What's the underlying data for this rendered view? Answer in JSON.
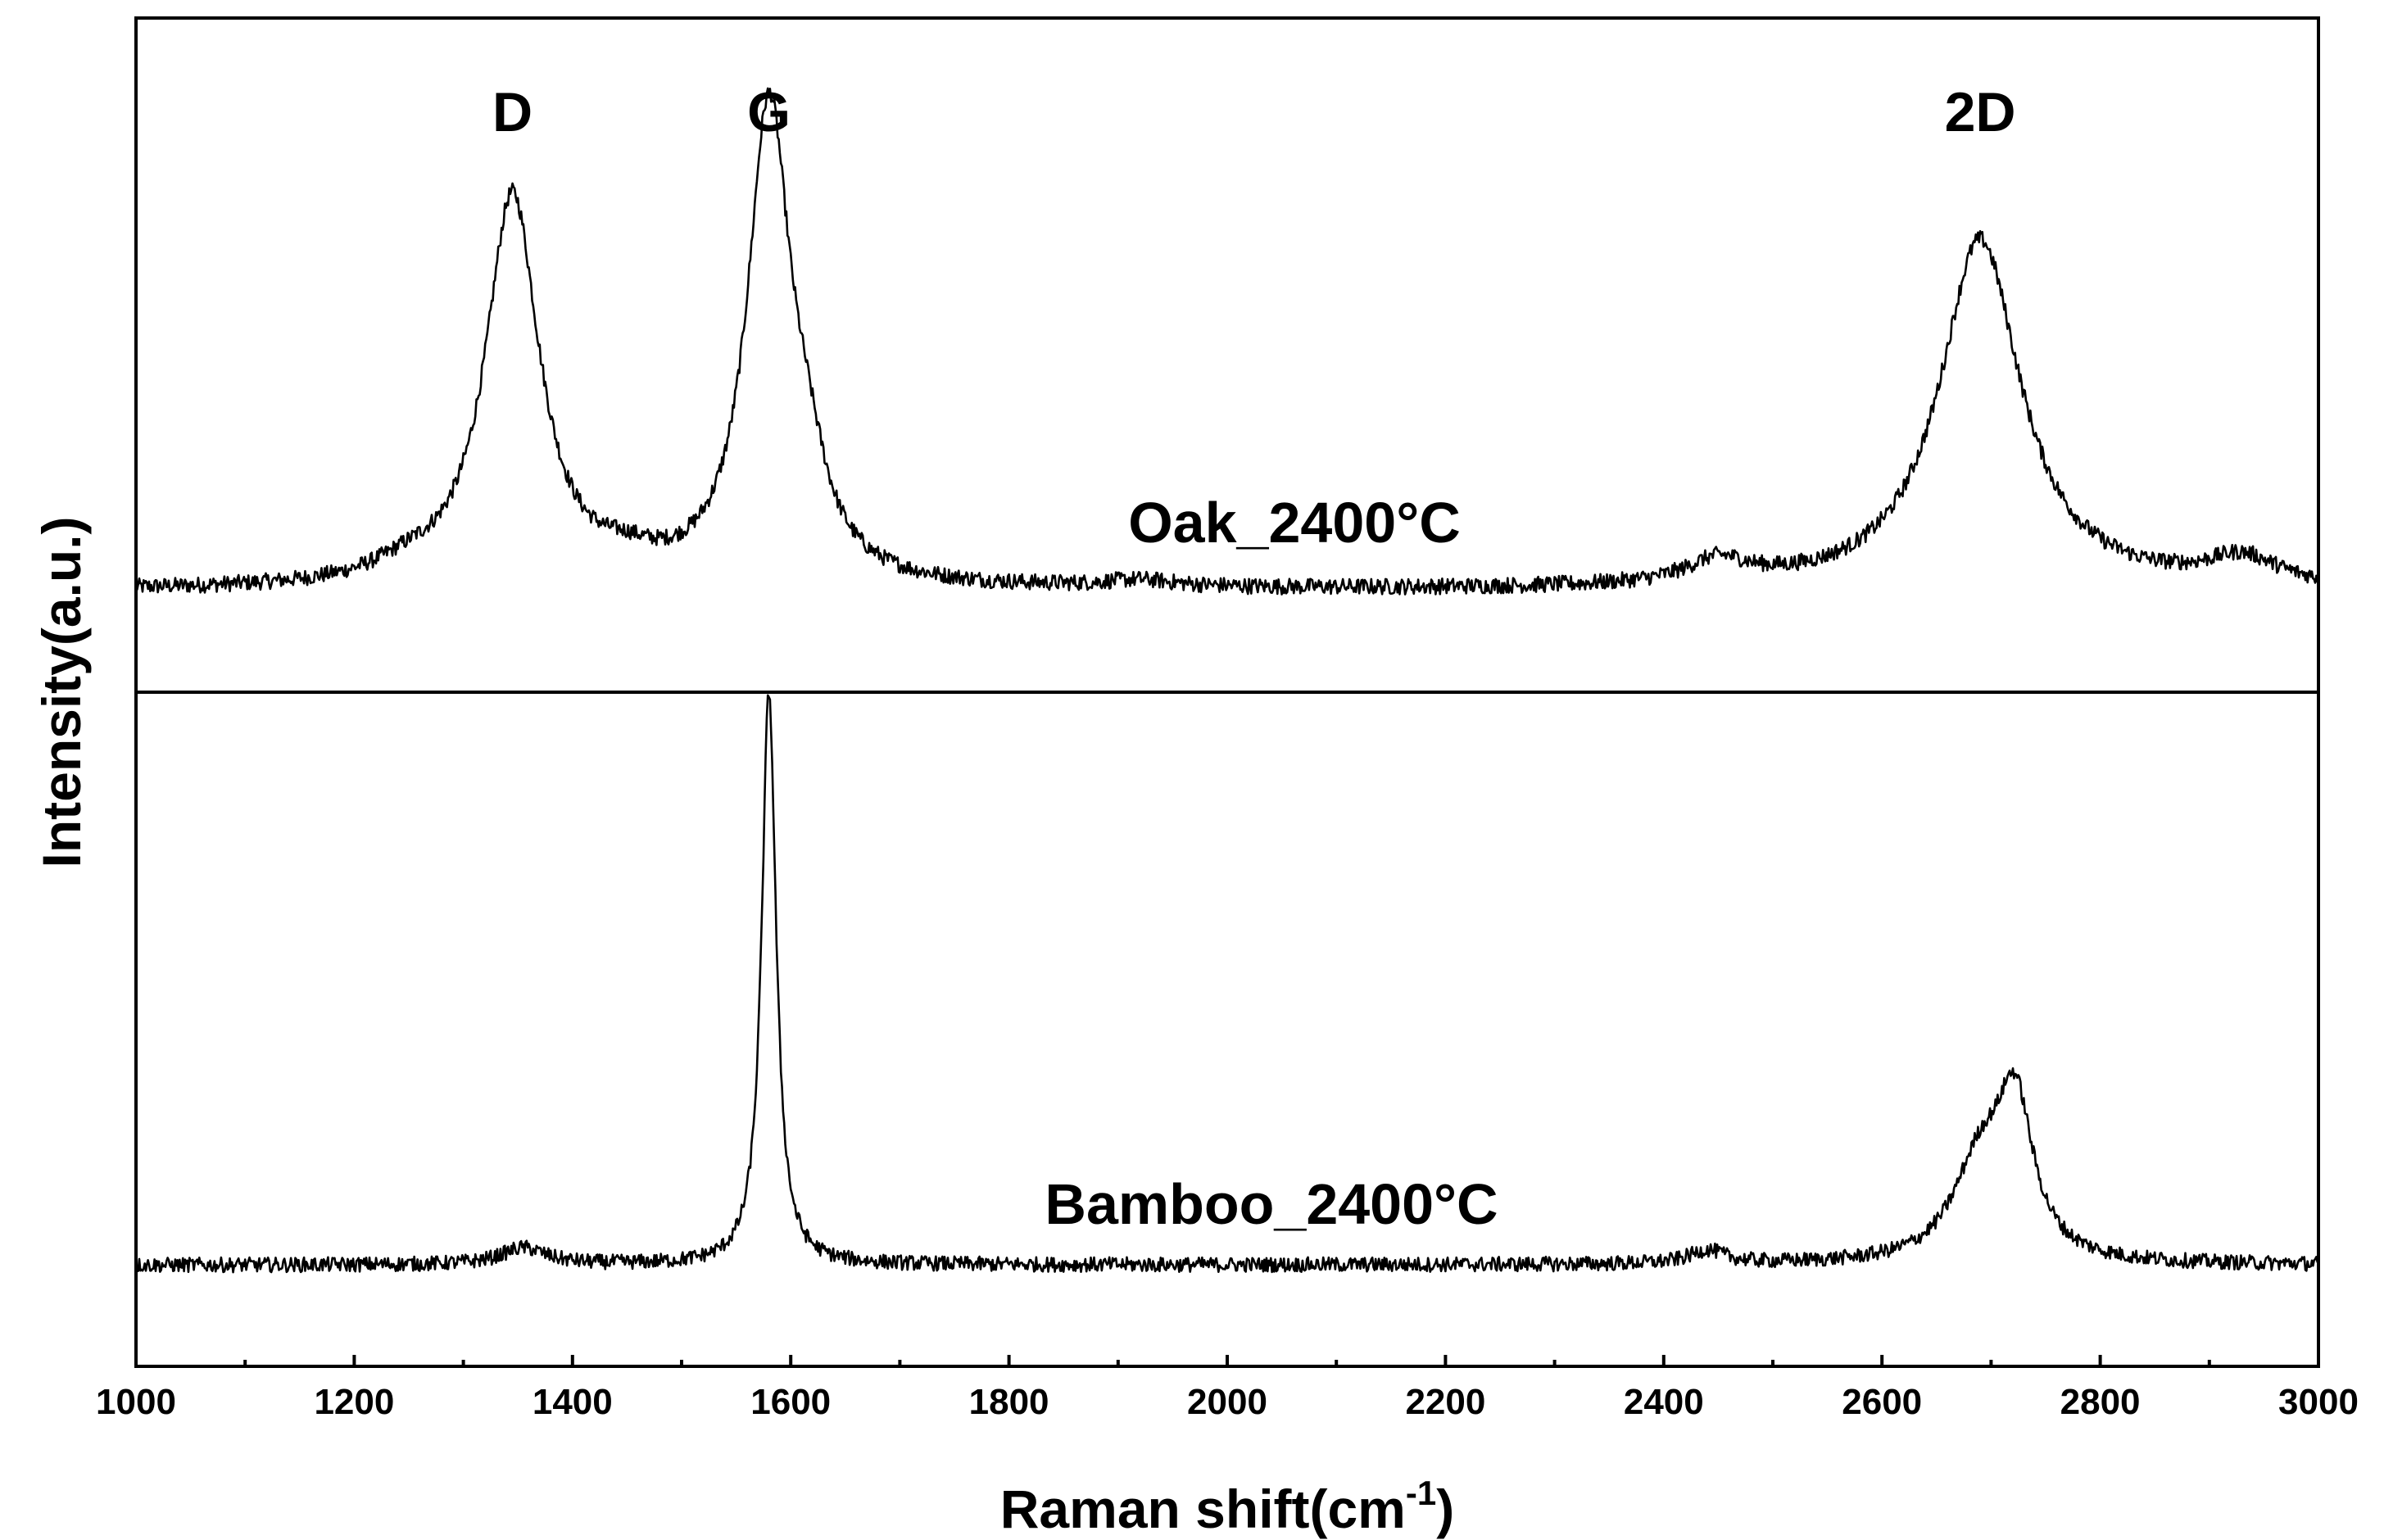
{
  "chart_data": {
    "type": "line",
    "xlabel": "Raman shift(cm",
    "xlabel_sup": "-1",
    "xlabel_close": ")",
    "ylabel": "Intensity(a.u.)",
    "xlim": [
      1000,
      3000
    ],
    "ylim": [
      0,
      1
    ],
    "x_ticks": [
      "1000",
      "1200",
      "1400",
      "1600",
      "1800",
      "2000",
      "2200",
      "2400",
      "2600",
      "2800",
      "3000"
    ],
    "x_minor_step": 100,
    "peak_labels": [
      {
        "text": "D",
        "x": 1345
      },
      {
        "text": "G",
        "x": 1580
      },
      {
        "text": "2D",
        "x": 2690
      }
    ],
    "panels": [
      {
        "name": "Oak_2400°C",
        "label": "Oak_2400°C",
        "baseline": 0.15,
        "noise": 0.012,
        "peaks": [
          {
            "center": 1345,
            "height": 0.58,
            "width": 30
          },
          {
            "center": 1580,
            "height": 0.7,
            "width": 24
          },
          {
            "center": 1615,
            "height": 0.1,
            "width": 22
          },
          {
            "center": 1250,
            "height": 0.02,
            "width": 40
          },
          {
            "center": 1450,
            "height": 0.02,
            "width": 30
          },
          {
            "center": 1920,
            "height": 0.01,
            "width": 40
          },
          {
            "center": 2450,
            "height": 0.035,
            "width": 35
          },
          {
            "center": 2690,
            "height": 0.52,
            "width": 45
          },
          {
            "center": 2930,
            "height": 0.04,
            "width": 40
          }
        ]
      },
      {
        "name": "Bamboo_2400°C",
        "label": "Bamboo_2400°C",
        "baseline": 0.15,
        "noise": 0.011,
        "peaks": [
          {
            "center": 1355,
            "height": 0.025,
            "width": 25
          },
          {
            "center": 1580,
            "height": 0.85,
            "width": 8
          },
          {
            "center": 2440,
            "height": 0.02,
            "width": 20
          },
          {
            "center": 2690,
            "height": 0.14,
            "width": 30
          },
          {
            "center": 2722,
            "height": 0.22,
            "width": 20
          }
        ]
      }
    ]
  }
}
